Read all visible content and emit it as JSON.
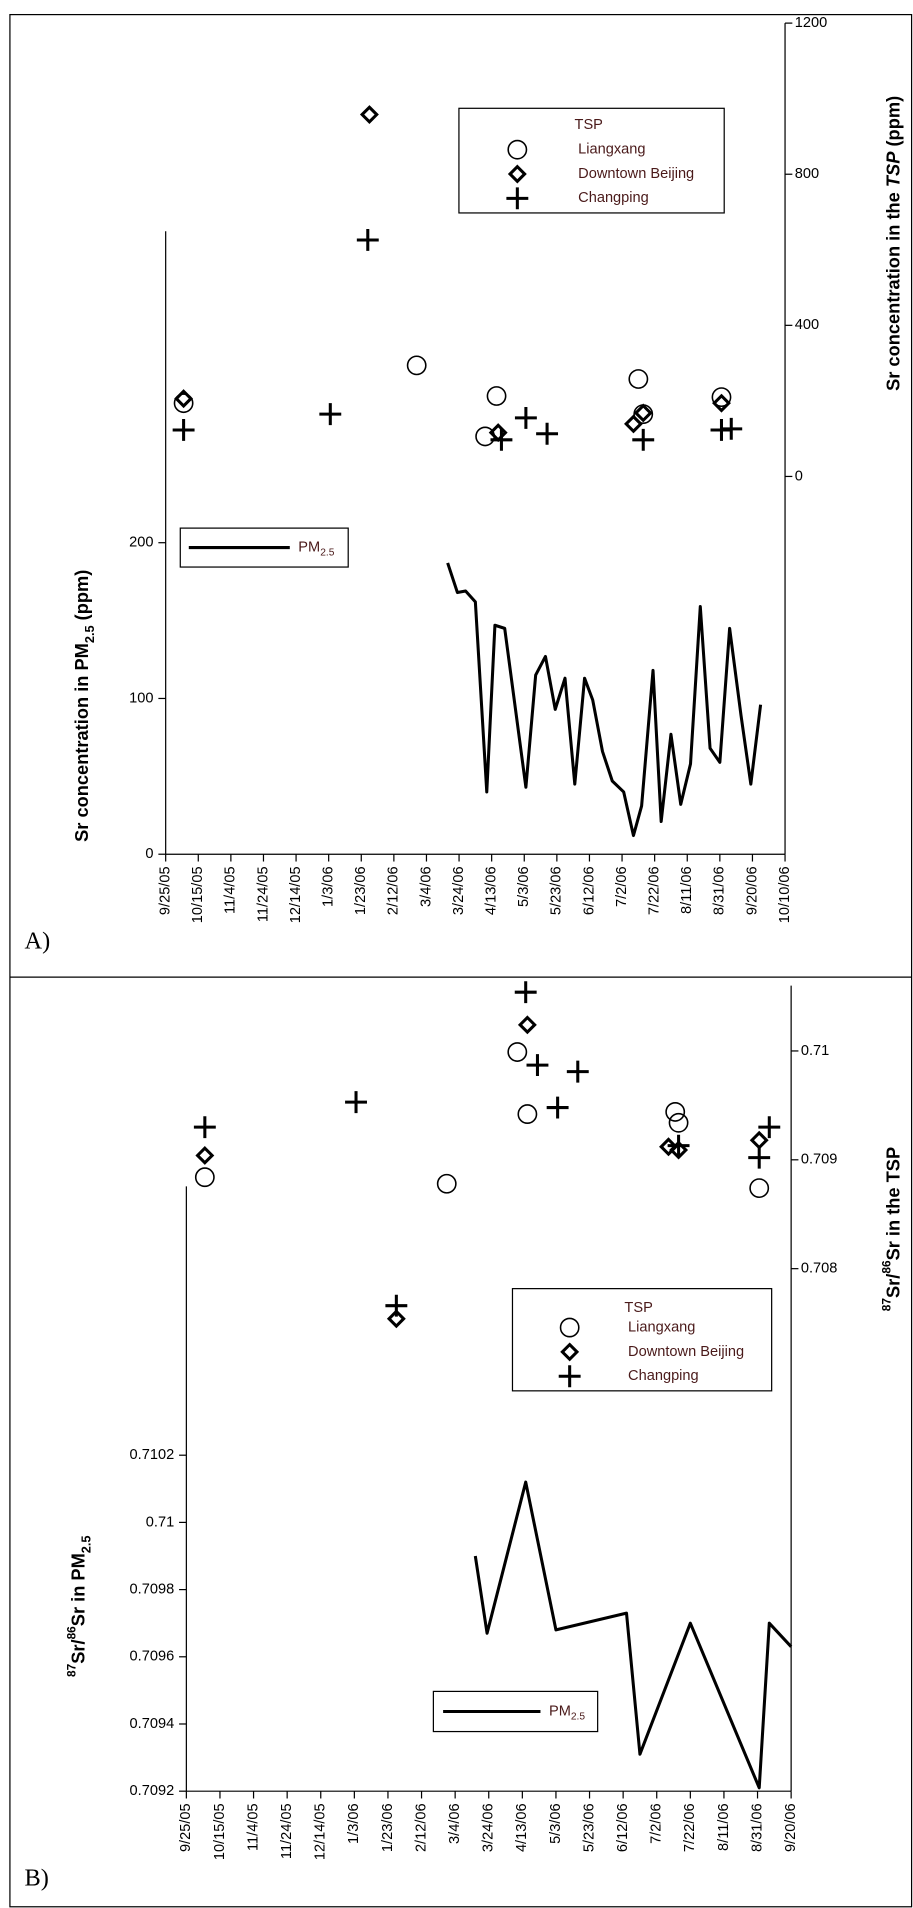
{
  "chart_data": [
    {
      "type": "scatter-line",
      "panel": "A)",
      "ylabel": [
        "Sr concentration in PM",
        "2.5",
        " (ppm)"
      ],
      "ylabel_format": [
        "",
        "sub",
        ""
      ],
      "y2label": [
        "Sr concentration in the ",
        "TSP",
        " (ppm)"
      ],
      "y2label_format": [
        "",
        "italic",
        ""
      ],
      "legend_title": "TSP",
      "xlim": [
        "2005-09-25",
        "2006-10-10"
      ],
      "xticks": [
        {
          "value": "2005-09-25",
          "label": "9/25/05"
        },
        {
          "value": "2005-10-15",
          "label": "10/15/05"
        },
        {
          "value": "2005-11-04",
          "label": "11/4/05"
        },
        {
          "value": "2005-11-24",
          "label": "11/24/05"
        },
        {
          "value": "2005-12-14",
          "label": "12/14/05"
        },
        {
          "value": "2006-01-03",
          "label": "1/3/06"
        },
        {
          "value": "2006-01-23",
          "label": "1/23/06"
        },
        {
          "value": "2006-02-12",
          "label": "2/12/06"
        },
        {
          "value": "2006-03-04",
          "label": "3/4/06"
        },
        {
          "value": "2006-03-24",
          "label": "3/24/06"
        },
        {
          "value": "2006-04-13",
          "label": "4/13/06"
        },
        {
          "value": "2006-05-03",
          "label": "5/3/06"
        },
        {
          "value": "2006-05-23",
          "label": "5/23/06"
        },
        {
          "value": "2006-06-12",
          "label": "6/12/06"
        },
        {
          "value": "2006-07-02",
          "label": "7/2/06"
        },
        {
          "value": "2006-07-22",
          "label": "7/22/06"
        },
        {
          "value": "2006-08-11",
          "label": "8/11/06"
        },
        {
          "value": "2006-08-31",
          "label": "8/31/06"
        },
        {
          "value": "2006-09-20",
          "label": "9/20/06"
        },
        {
          "value": "2006-10-10",
          "label": "10/10/06"
        }
      ],
      "ylim": [
        0,
        400
      ],
      "yticks": [
        0,
        100,
        200
      ],
      "y2lim": [
        -1000,
        1200
      ],
      "y2ticks": [
        0,
        400,
        800,
        1200
      ],
      "series": [
        {
          "name": "Liangxang",
          "marker": "circle",
          "color": "#000000",
          "axis": "y2",
          "x": [
            "2005-10-06",
            "2006-02-26",
            "2006-04-09",
            "2006-04-16",
            "2006-07-12",
            "2006-07-15",
            "2006-09-01"
          ],
          "values": [
            194,
            294,
            106,
            213,
            258,
            165,
            210
          ]
        },
        {
          "name": "Downtown Beijing",
          "marker": "diamond",
          "color": "#000000",
          "axis": "y2",
          "x": [
            "2005-10-06",
            "2006-01-28",
            "2006-04-17",
            "2006-07-09",
            "2006-07-15",
            "2006-09-01"
          ],
          "values": [
            206,
            958,
            116,
            139,
            168,
            194
          ]
        },
        {
          "name": "Changping",
          "marker": "plus",
          "color": "#000000",
          "axis": "y2",
          "x": [
            "2005-10-06",
            "2006-01-04",
            "2006-01-27",
            "2006-04-19",
            "2006-05-04",
            "2006-05-17",
            "2006-07-15",
            "2006-09-01",
            "2006-09-07"
          ],
          "values": [
            123,
            165,
            626,
            97,
            155,
            113,
            97,
            123,
            126
          ]
        },
        {
          "name": [
            "PM",
            "2.5"
          ],
          "marker": "line",
          "color": "#000000",
          "axis": "y",
          "x": [
            "2006-03-17",
            "2006-03-23",
            "2006-03-28",
            "2006-04-03",
            "2006-04-10",
            "2006-04-15",
            "2006-04-21",
            "2006-05-04",
            "2006-05-10",
            "2006-05-16",
            "2006-05-22",
            "2006-05-28",
            "2006-06-03",
            "2006-06-09",
            "2006-06-14",
            "2006-06-20",
            "2006-06-26",
            "2006-07-03",
            "2006-07-09",
            "2006-07-14",
            "2006-07-21",
            "2006-07-26",
            "2006-08-01",
            "2006-08-07",
            "2006-08-13",
            "2006-08-19",
            "2006-08-25",
            "2006-08-31",
            "2006-09-06",
            "2006-09-13",
            "2006-09-19",
            "2006-09-25"
          ],
          "values": [
            187,
            168,
            169,
            162,
            40,
            147,
            145,
            43,
            115,
            127,
            93,
            113,
            45,
            113,
            99,
            66,
            47,
            40,
            12,
            31,
            118,
            21,
            77,
            32,
            58,
            159,
            68,
            59,
            145,
            89,
            45,
            96
          ]
        }
      ]
    },
    {
      "type": "scatter-line",
      "panel": "B)",
      "ylabel": [
        "87",
        "Sr/",
        "86",
        "Sr in PM",
        "2.5"
      ],
      "ylabel_format": [
        "sup",
        "",
        "sup",
        "",
        "sub"
      ],
      "y2label": [
        "87",
        "Sr/",
        "86",
        "Sr in the TSP"
      ],
      "y2label_format": [
        "sup",
        "",
        "sup",
        ""
      ],
      "legend_title": "TSP",
      "xlim": [
        "2005-09-25",
        "2006-09-20"
      ],
      "xticks": [
        {
          "value": "2005-09-25",
          "label": "9/25/05"
        },
        {
          "value": "2005-10-15",
          "label": "10/15/05"
        },
        {
          "value": "2005-11-04",
          "label": "11/4/05"
        },
        {
          "value": "2005-11-24",
          "label": "11/24/05"
        },
        {
          "value": "2005-12-14",
          "label": "12/14/05"
        },
        {
          "value": "2006-01-03",
          "label": "1/3/06"
        },
        {
          "value": "2006-01-23",
          "label": "1/23/06"
        },
        {
          "value": "2006-02-12",
          "label": "2/12/06"
        },
        {
          "value": "2006-03-04",
          "label": "3/4/06"
        },
        {
          "value": "2006-03-24",
          "label": "3/24/06"
        },
        {
          "value": "2006-04-13",
          "label": "4/13/06"
        },
        {
          "value": "2006-05-03",
          "label": "5/3/06"
        },
        {
          "value": "2006-05-23",
          "label": "5/23/06"
        },
        {
          "value": "2006-06-12",
          "label": "6/12/06"
        },
        {
          "value": "2006-07-02",
          "label": "7/2/06"
        },
        {
          "value": "2006-07-22",
          "label": "7/22/06"
        },
        {
          "value": "2006-08-11",
          "label": "8/11/06"
        },
        {
          "value": "2006-08-31",
          "label": "8/31/06"
        },
        {
          "value": "2006-09-20",
          "label": "9/20/06"
        }
      ],
      "ylim": [
        0.7092,
        0.711
      ],
      "yticks": [
        0.7092,
        0.7094,
        0.7096,
        0.7098,
        0.71,
        0.7102
      ],
      "y2lim": [
        0.7032,
        0.7106
      ],
      "y2ticks": [
        0.708,
        0.709,
        0.71
      ],
      "series": [
        {
          "name": "Liangxang",
          "marker": "circle",
          "color": "#000000",
          "axis": "y2",
          "x": [
            "2005-10-06",
            "2006-02-27",
            "2006-04-10",
            "2006-04-16",
            "2006-07-13",
            "2006-07-15",
            "2006-09-01"
          ],
          "values": [
            0.70884,
            0.70878,
            0.70999,
            0.70942,
            0.70944,
            0.70934,
            0.70874
          ]
        },
        {
          "name": "Downtown Beijing",
          "marker": "diamond",
          "color": "#000000",
          "axis": "y2",
          "x": [
            "2005-10-06",
            "2006-01-28",
            "2006-04-16",
            "2006-07-09",
            "2006-07-15",
            "2006-09-01"
          ],
          "values": [
            0.70904,
            0.70754,
            0.71024,
            0.70912,
            0.70909,
            0.70918
          ]
        },
        {
          "name": "Changping",
          "marker": "plus",
          "color": "#000000",
          "axis": "y2",
          "x": [
            "2005-10-06",
            "2006-01-04",
            "2006-01-28",
            "2006-04-15",
            "2006-04-22",
            "2006-05-04",
            "2006-05-16",
            "2006-07-15",
            "2006-09-01",
            "2006-09-07"
          ],
          "values": [
            0.7093,
            0.70953,
            0.70766,
            0.71054,
            0.70987,
            0.70948,
            0.70981,
            0.70913,
            0.70902,
            0.7093
          ]
        },
        {
          "name": [
            "PM",
            "2.5"
          ],
          "marker": "line",
          "color": "#000000",
          "axis": "y",
          "x": [
            "2006-03-16",
            "2006-03-23",
            "2006-04-15",
            "2006-05-03",
            "2006-06-14",
            "2006-06-22",
            "2006-07-22",
            "2006-09-01",
            "2006-09-07",
            "2006-09-20"
          ],
          "values": [
            0.7099,
            0.70967,
            0.71012,
            0.70968,
            0.70973,
            0.70931,
            0.7097,
            0.70921,
            0.7097,
            0.70963
          ]
        }
      ]
    }
  ]
}
